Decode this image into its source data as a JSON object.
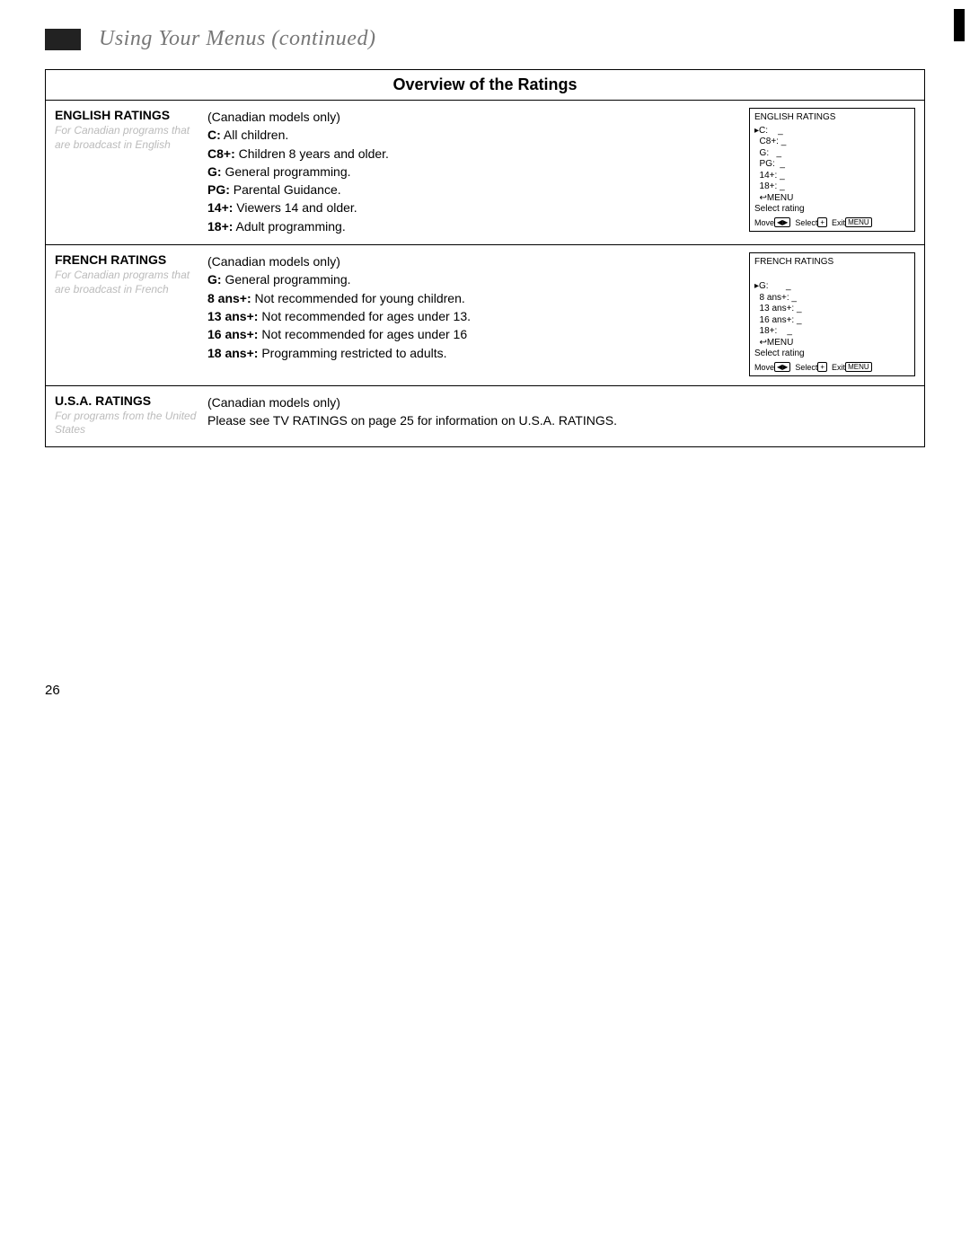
{
  "header": {
    "title": "Using Your Menus (continued)"
  },
  "table": {
    "caption": "Overview of the Ratings"
  },
  "english": {
    "label_title": "ENGLISH RATINGS",
    "label_sub": "For Canadian programs that are broadcast in English",
    "note": "(Canadian models only)",
    "lines": {
      "c_label": "C:",
      "c_text": " All children.",
      "c8_label": "C8+:",
      "c8_text": " Children 8 years and older.",
      "g_label": "G:",
      "g_text": " General programming.",
      "pg_label": "PG:",
      "pg_text": " Parental Guidance.",
      "v14_label": "14+:",
      "v14_text": " Viewers 14 and older.",
      "v18_label": "18+:",
      "v18_text": " Adult programming."
    },
    "osd": {
      "title": "ENGLISH RATINGS",
      "i1": "▸C:    _",
      "i2": "  C8+: _",
      "i3": "  G:   _",
      "i4": "  PG:  _",
      "i5": "  14+: _",
      "i6": "  18+: _",
      "menu": "  ↩MENU",
      "sel": "Select rating",
      "foot_move": "Move",
      "foot_select": "Select",
      "foot_exit": "Exit"
    }
  },
  "french": {
    "label_title": "FRENCH RATINGS",
    "label_sub": "For Canadian programs that are broadcast in French",
    "note": "(Canadian models only)",
    "lines": {
      "g_label": "G:",
      "g_text": " General programming.",
      "a8_label": "8 ans+:",
      "a8_text": " Not recommended for young children.",
      "a13_label": "13 ans+:",
      "a13_text": " Not recommended for ages under 13.",
      "a16_label": "16 ans+:",
      "a16_text": " Not recommended for ages under 16",
      "a18_label": "18 ans+:",
      "a18_text": " Programming restricted to adults."
    },
    "osd": {
      "title": "FRENCH RATINGS",
      "blank": " ",
      "i1": "▸G:       _",
      "i2": "  8 ans+: _",
      "i3": "  13 ans+: _",
      "i4": "  16 ans+: _",
      "i5": "  18+:    _",
      "menu": "  ↩MENU",
      "sel": "Select rating",
      "foot_move": "Move",
      "foot_select": "Select",
      "foot_exit": "Exit"
    }
  },
  "usa": {
    "label_title": "U.S.A. RATINGS",
    "label_sub": "For programs from the United States",
    "note": "(Canadian models only)",
    "body": "Please see TV RATINGS on page 25 for information on U.S.A. RATINGS."
  },
  "page_number": "26"
}
